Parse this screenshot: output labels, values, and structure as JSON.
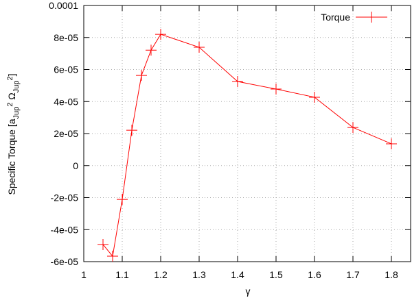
{
  "chart_data": {
    "type": "line",
    "xlabel": "γ",
    "ylabel": [
      "Specific Torque [a",
      "Jup",
      "2",
      " Ω",
      "Jup",
      "2",
      "]"
    ],
    "x": [
      1.05,
      1.075,
      1.1,
      1.125,
      1.15,
      1.175,
      1.2,
      1.3,
      1.4,
      1.5,
      1.6,
      1.7,
      1.8
    ],
    "series": [
      {
        "name": "Torque",
        "color": "#ff0000",
        "values": [
          -4.93e-05,
          -5.66e-05,
          -2.11e-05,
          2.21e-05,
          5.63e-05,
          7.21e-05,
          8.2e-05,
          7.39e-05,
          5.25e-05,
          4.78e-05,
          4.27e-05,
          2.38e-05,
          1.36e-05
        ]
      }
    ],
    "xlim": [
      1,
      1.85
    ],
    "ylim": [
      -6e-05,
      0.0001
    ],
    "xticks": [
      1,
      1.1,
      1.2,
      1.3,
      1.4,
      1.5,
      1.6,
      1.7,
      1.8
    ],
    "yticks": [
      {
        "value": -6e-05,
        "label": "-6e-05"
      },
      {
        "value": -4e-05,
        "label": "-4e-05"
      },
      {
        "value": -2e-05,
        "label": "-2e-05"
      },
      0,
      {
        "value": 2e-05,
        "label": "2e-05"
      },
      {
        "value": 4e-05,
        "label": "4e-05"
      },
      {
        "value": 6e-05,
        "label": "6e-05"
      },
      {
        "value": 8e-05,
        "label": "8e-05"
      },
      0.0001
    ],
    "grid": true,
    "legend": "top-right"
  }
}
